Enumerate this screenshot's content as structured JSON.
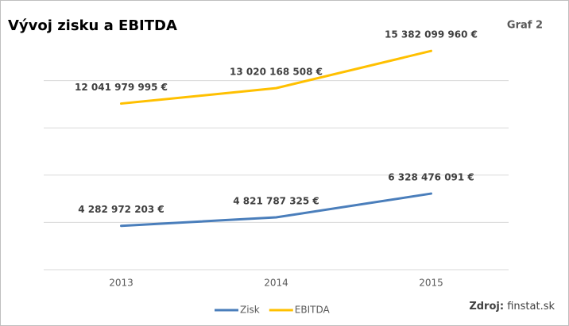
{
  "chart_data": {
    "type": "line",
    "title": "Vývoj zisku a EBITDA",
    "corner_label": "Graf 2",
    "source": {
      "label": "Zdroj:",
      "text": "finstat.sk"
    },
    "categories": [
      "2013",
      "2014",
      "2015"
    ],
    "series": [
      {
        "name": "Zisk",
        "color": "#4a7ebb",
        "values": [
          4282972203,
          4821787325,
          6328476091
        ],
        "value_labels": [
          "4 282 972 203 €",
          "4 821 787 325 €",
          "6 328 476 091 €"
        ]
      },
      {
        "name": "EBITDA",
        "color": "#ffc000",
        "values": [
          12041979995,
          13020168508,
          15382099960
        ],
        "value_labels": [
          "12 041 979 995 €",
          "13 020 168 508 €",
          "15 382 099 960 €"
        ]
      }
    ],
    "ylim": [
      1500000000,
      16500000000
    ],
    "yticks": [
      1500000000,
      4500000000,
      7500000000,
      10500000000,
      13500000000
    ],
    "grid": true,
    "legend": "bottom"
  }
}
